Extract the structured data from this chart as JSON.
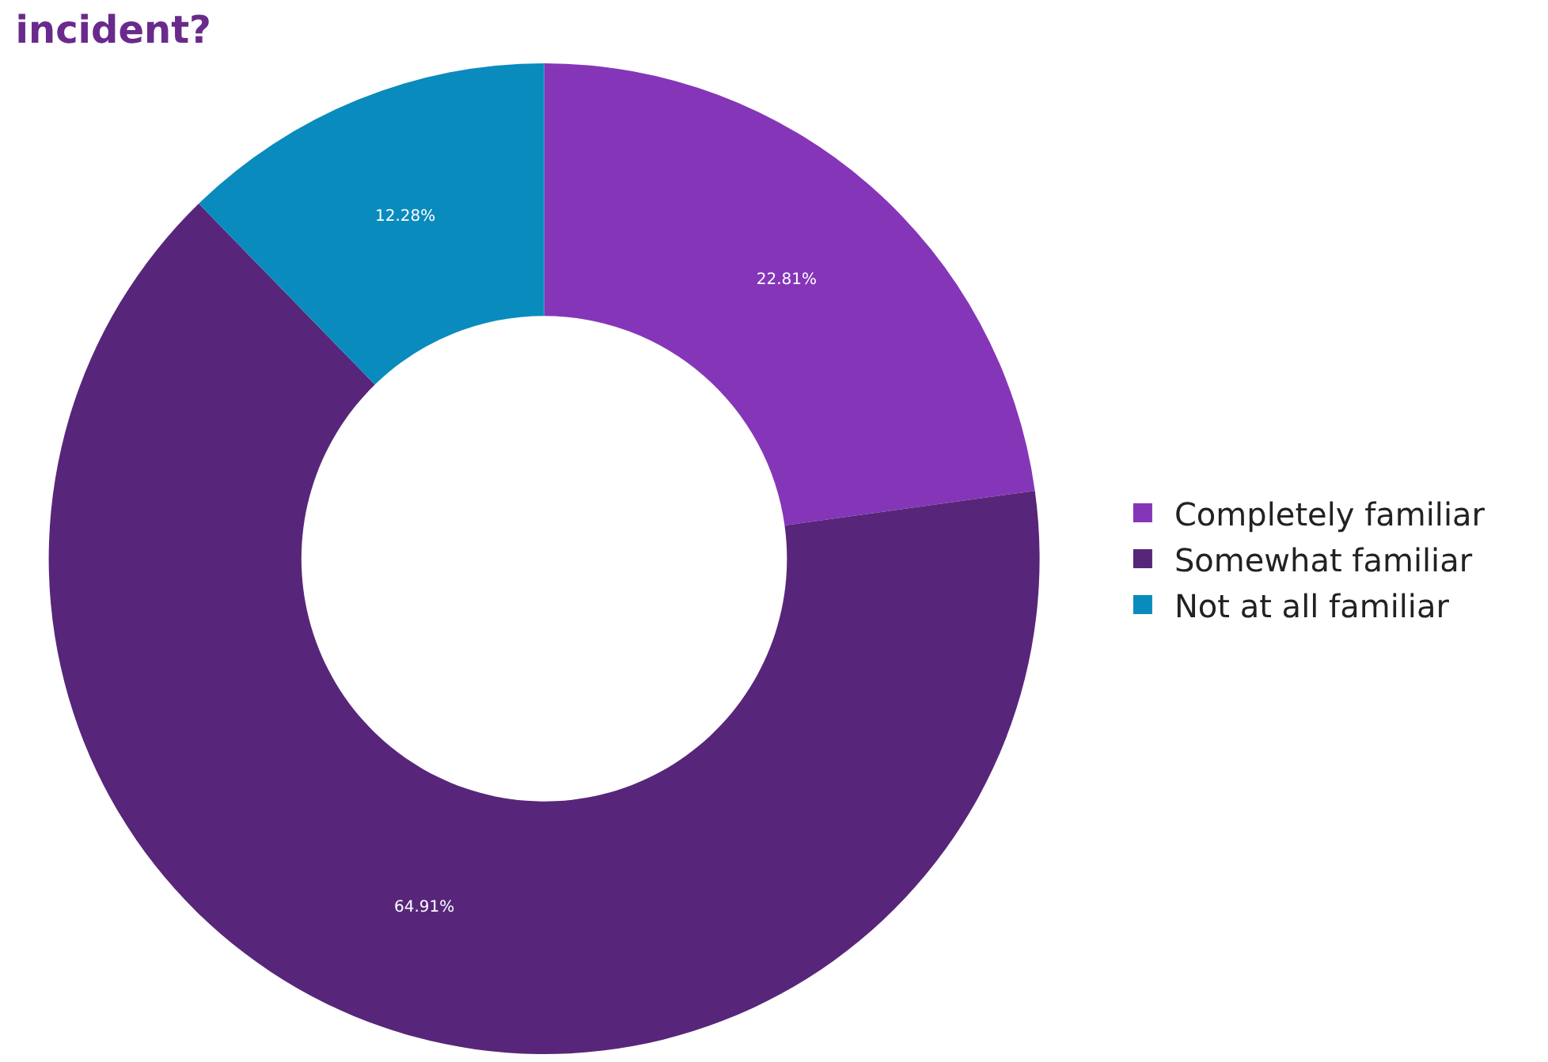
{
  "chart_data": {
    "type": "donut",
    "title": "incident?",
    "categories": [
      "Completely familiar",
      "Somewhat familiar",
      "Not at all familiar"
    ],
    "values": [
      22.81,
      64.91,
      12.28
    ],
    "colors": [
      "#8536b8",
      "#57267a",
      "#0a8bbd"
    ],
    "value_labels": [
      "22.81%",
      "64.91%",
      "12.28%"
    ],
    "legend": "right"
  }
}
